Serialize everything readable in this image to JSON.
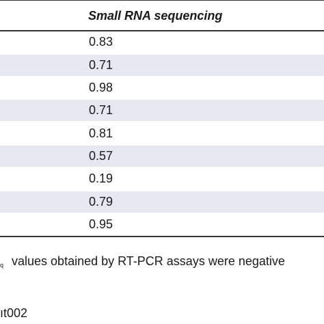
{
  "table": {
    "column_header": "Small RNA sequencing",
    "rows": [
      "0.83",
      "0.71",
      "0.98",
      "0.71",
      "0.81",
      "0.57",
      "0.19",
      "0.79",
      "0.95"
    ]
  },
  "footnote": {
    "subscript": "q",
    "text": "values obtained by RT-PCR assays were negative"
  },
  "doi_fragment": "ıt002",
  "colors": {
    "row_shade": "#e6e8f1",
    "rule": "#333333"
  }
}
